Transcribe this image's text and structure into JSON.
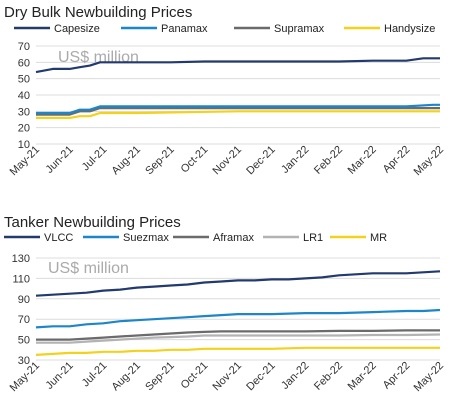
{
  "chart_data": [
    {
      "type": "line",
      "title": "Dry Bulk Newbuilding Prices",
      "unit_label": "US$ million",
      "ylim": [
        10,
        70
      ],
      "yticks": [
        10,
        20,
        30,
        40,
        50,
        60,
        70
      ],
      "x_tick_labels": [
        "May-21",
        "Jun-21",
        "Jul-21",
        "Aug-21",
        "Sep-21",
        "Oct-21",
        "Nov-21",
        "Dec-21",
        "Jan-22",
        "Feb-22",
        "Mar-22",
        "Apr-22",
        "May-22"
      ],
      "grid": "horizontal",
      "legend_position": "top",
      "series": [
        {
          "name": "Capesize",
          "color": "#233a6e",
          "x": [
            0,
            0.5,
            1,
            1.3,
            1.6,
            1.9,
            2.5,
            3,
            4,
            5,
            5.5,
            6,
            7,
            8,
            9,
            10,
            11,
            11.5,
            12
          ],
          "values": [
            54,
            56,
            56,
            57,
            58,
            60,
            60,
            60,
            60,
            60.5,
            60.5,
            60.5,
            60.5,
            60.5,
            60.5,
            61,
            61,
            62.5,
            62.5
          ]
        },
        {
          "name": "Panamax",
          "color": "#1d86c8",
          "x": [
            0,
            1,
            1.3,
            1.6,
            1.9,
            3,
            6,
            9,
            11,
            11.8,
            12
          ],
          "values": [
            29,
            29,
            31,
            31,
            33,
            33,
            33,
            33,
            33,
            34,
            34
          ]
        },
        {
          "name": "Supramax",
          "color": "#6b6b6b",
          "x": [
            0,
            1,
            1.3,
            1.6,
            1.9,
            3,
            6,
            9,
            12
          ],
          "values": [
            28,
            28,
            30,
            30,
            32,
            32,
            32,
            32,
            32
          ]
        },
        {
          "name": "Handysize",
          "color": "#f2d21a",
          "x": [
            0,
            1,
            1.3,
            1.6,
            1.9,
            3,
            6,
            9,
            11,
            12
          ],
          "values": [
            26,
            26,
            27,
            27,
            29,
            29,
            30,
            30,
            30,
            30
          ]
        }
      ]
    },
    {
      "type": "line",
      "title": "Tanker Newbuilding Prices",
      "unit_label": "US$ million",
      "ylim": [
        30,
        130
      ],
      "yticks": [
        30,
        50,
        70,
        90,
        110,
        130
      ],
      "x_tick_labels": [
        "May-21",
        "Jun-21",
        "Jul-21",
        "Aug-21",
        "Sep-21",
        "Oct-21",
        "Nov-21",
        "Dec-21",
        "Jan-22",
        "Feb-22",
        "Mar-22",
        "Apr-22",
        "May-22"
      ],
      "grid": "horizontal",
      "legend_position": "top",
      "series": [
        {
          "name": "VLCC",
          "color": "#233a6e",
          "x": [
            0,
            0.5,
            1,
            1.5,
            2,
            2.5,
            3,
            3.5,
            4,
            4.5,
            5,
            5.5,
            6,
            6.5,
            7,
            7.5,
            8,
            8.5,
            9,
            9.5,
            10,
            10.5,
            11,
            11.5,
            12
          ],
          "values": [
            93,
            94,
            95,
            96,
            98,
            99,
            101,
            102,
            103,
            104,
            106,
            107,
            108,
            108,
            109,
            109,
            110,
            111,
            113,
            114,
            115,
            115,
            115,
            116,
            117
          ]
        },
        {
          "name": "Suezmax",
          "color": "#1d86c8",
          "x": [
            0,
            0.5,
            1,
            1.5,
            2,
            2.5,
            3,
            3.5,
            4,
            4.5,
            5,
            5.5,
            6,
            7,
            8,
            9,
            10,
            11,
            11.5,
            12
          ],
          "values": [
            62,
            63,
            63,
            65,
            66,
            68,
            69,
            70,
            71,
            72,
            73,
            74,
            75,
            75,
            76,
            76,
            77,
            78,
            78,
            79
          ]
        },
        {
          "name": "Aframax",
          "color": "#6b6b6b",
          "x": [
            0,
            1,
            1.5,
            2,
            2.5,
            3,
            3.5,
            4,
            4.5,
            5,
            5.5,
            6,
            7,
            8,
            9,
            10,
            11,
            12
          ],
          "values": [
            50,
            50,
            51,
            52,
            53,
            54,
            55,
            56,
            57,
            57.5,
            58,
            58,
            58,
            58,
            58.5,
            58.5,
            59,
            59
          ]
        },
        {
          "name": "LR1",
          "color": "#b3b3b3",
          "x": [
            0,
            1,
            1.5,
            2,
            2.5,
            3,
            3.5,
            4,
            4.5,
            5,
            5.5,
            6,
            7,
            8,
            9,
            10,
            11,
            12
          ],
          "values": [
            47,
            47,
            48,
            49,
            50,
            51,
            52,
            52.5,
            53,
            54,
            54,
            54,
            54,
            54,
            54,
            54.5,
            54.5,
            55
          ]
        },
        {
          "name": "MR",
          "color": "#f2d21a",
          "x": [
            0,
            0.5,
            1,
            1.5,
            2,
            2.5,
            3,
            3.5,
            4,
            4.5,
            5,
            5.5,
            6,
            7,
            8,
            9,
            10,
            11,
            12
          ],
          "values": [
            35,
            36,
            37,
            37,
            38,
            38,
            39,
            39,
            40,
            40,
            41,
            41,
            41,
            41,
            42,
            42,
            42,
            42,
            42
          ]
        }
      ]
    }
  ]
}
